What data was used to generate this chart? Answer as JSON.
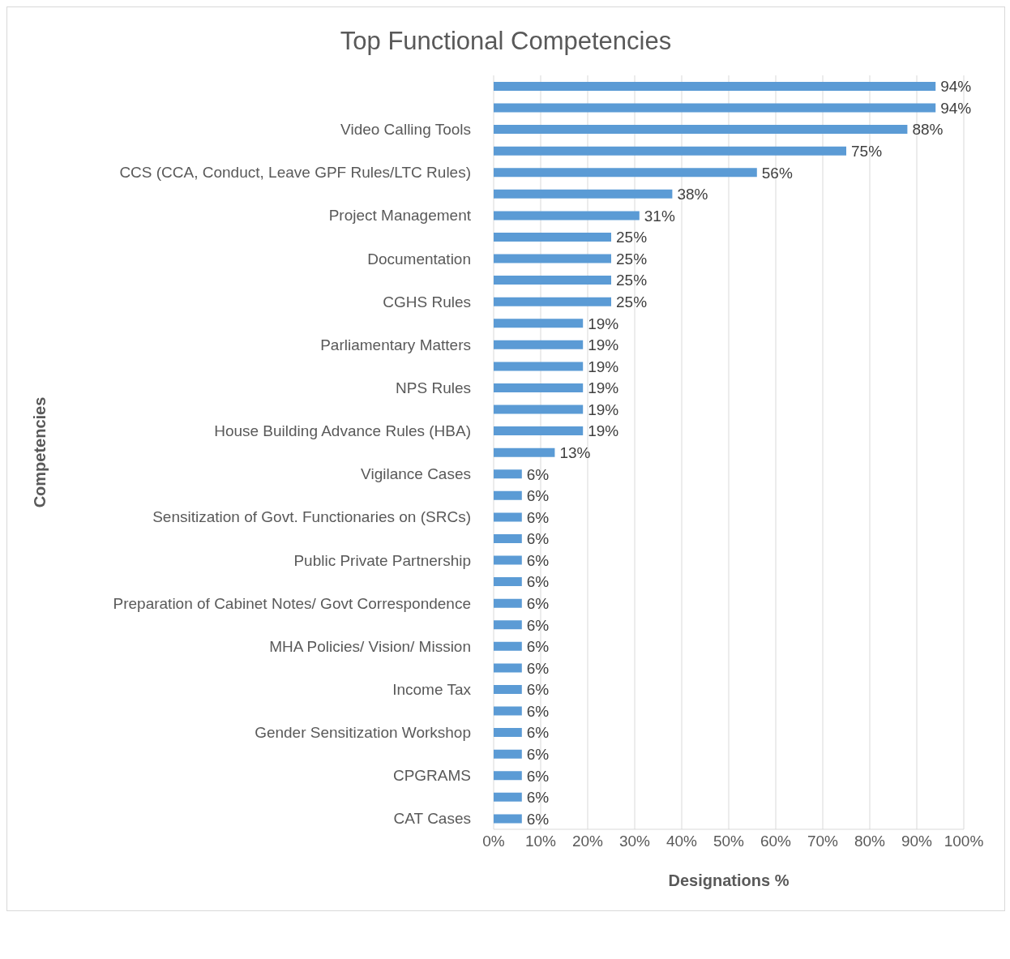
{
  "chart_data": {
    "type": "bar",
    "orientation": "horizontal",
    "title": "Top Functional Competencies",
    "xlabel": "Designations %",
    "ylabel": "Competencies",
    "categories": [
      null,
      null,
      "Video Calling Tools",
      null,
      "CCS (CCA, Conduct, Leave GPF Rules/LTC Rules)",
      null,
      "Project Management",
      null,
      "Documentation",
      null,
      "CGHS Rules",
      null,
      "Parliamentary Matters",
      null,
      "NPS Rules",
      null,
      "House Building Advance Rules (HBA)",
      null,
      "Vigilance Cases",
      null,
      "Sensitization of Govt. Functionaries on  (SRCs)",
      null,
      "Public Private Partnership",
      null,
      "Preparation of Cabinet Notes/ Govt Correspondence",
      null,
      "MHA Policies/ Vision/ Mission",
      null,
      "Income Tax",
      null,
      "Gender Sensitization Workshop",
      null,
      "CPGRAMS",
      null,
      "CAT Cases"
    ],
    "values": [
      94,
      94,
      88,
      75,
      56,
      38,
      31,
      25,
      25,
      25,
      25,
      19,
      19,
      19,
      19,
      19,
      19,
      13,
      6,
      6,
      6,
      6,
      6,
      6,
      6,
      6,
      6,
      6,
      6,
      6,
      6,
      6,
      6,
      6,
      6
    ],
    "value_labels": [
      "94%",
      "94%",
      "88%",
      "75%",
      "56%",
      "38%",
      "31%",
      "25%",
      "25%",
      "25%",
      "25%",
      "19%",
      "19%",
      "19%",
      "19%",
      "19%",
      "19%",
      "13%",
      "6%",
      "6%",
      "6%",
      "6%",
      "6%",
      "6%",
      "6%",
      "6%",
      "6%",
      "6%",
      "6%",
      "6%",
      "6%",
      "6%",
      "6%",
      "6%",
      "6%"
    ],
    "color": "#5b9bd5",
    "xlim": [
      0,
      100
    ],
    "xticks": [
      {
        "value": 0,
        "label": "0%"
      },
      {
        "value": 10,
        "label": "10%"
      },
      {
        "value": 20,
        "label": "20%"
      },
      {
        "value": 30,
        "label": "30%"
      },
      {
        "value": 40,
        "label": "40%"
      },
      {
        "value": 50,
        "label": "50%"
      },
      {
        "value": 60,
        "label": "60%"
      },
      {
        "value": 70,
        "label": "70%"
      },
      {
        "value": 80,
        "label": "80%"
      },
      {
        "value": 90,
        "label": "90%"
      },
      {
        "value": 100,
        "label": "100%"
      }
    ],
    "grid": "x"
  }
}
